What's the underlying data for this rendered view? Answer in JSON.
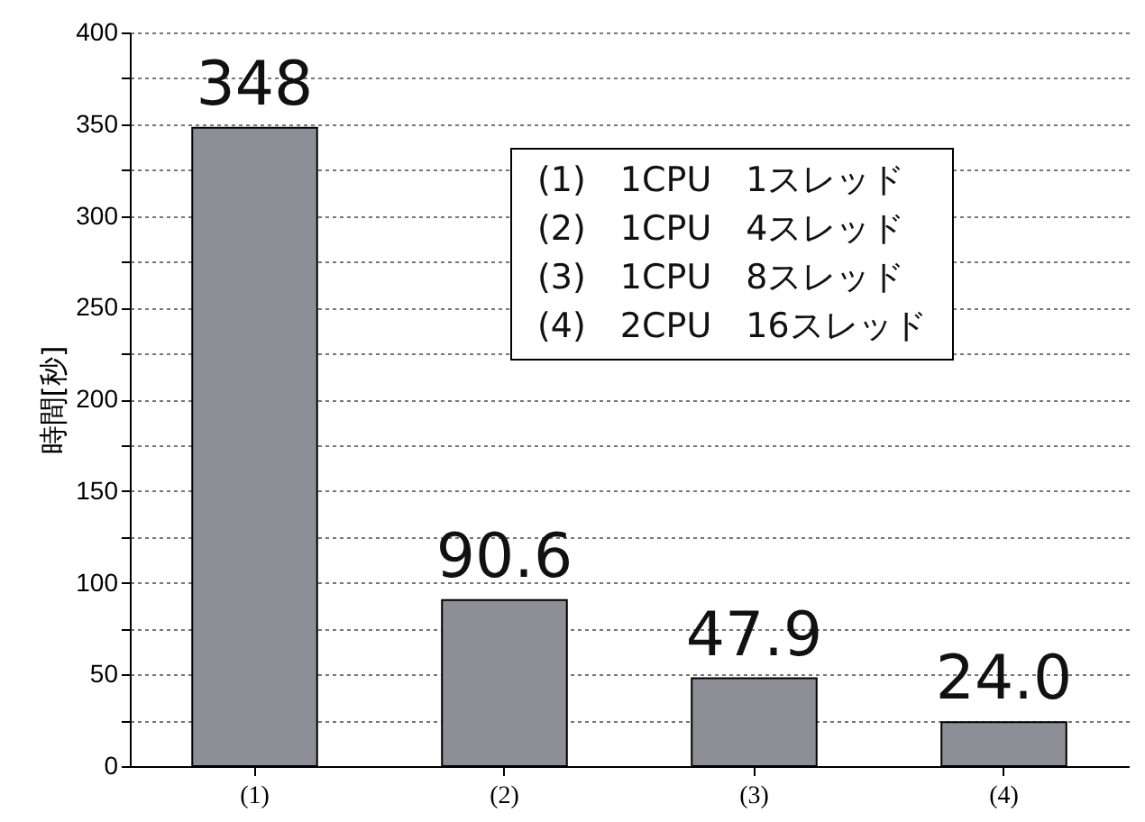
{
  "chart_data": {
    "type": "bar",
    "ylabel": "時間[秒]",
    "categories": [
      "(1)",
      "(2)",
      "(3)",
      "(4)"
    ],
    "values": [
      348,
      90.6,
      47.9,
      24.0
    ],
    "value_labels": [
      "348",
      "90.6",
      "47.9",
      "24.0"
    ],
    "color": "#8e8e96",
    "ylim": [
      0,
      400
    ],
    "yticks": [
      0,
      {
        "value": 25,
        "label": null
      },
      50,
      {
        "value": 75,
        "label": null
      },
      100,
      {
        "value": 125,
        "label": null
      },
      150,
      {
        "value": 175,
        "label": null
      },
      200,
      {
        "value": 225,
        "label": null
      },
      250,
      {
        "value": 275,
        "label": null
      },
      300,
      {
        "value": 325,
        "label": null
      },
      350,
      {
        "value": 375,
        "label": null
      },
      400
    ],
    "grid": "y",
    "annotations": [
      "(1)　1CPU　1スレッド",
      "(2)　1CPU　4スレッド",
      "(3)　1CPU　8スレッド",
      "(4)　2CPU　16スレッド"
    ]
  }
}
